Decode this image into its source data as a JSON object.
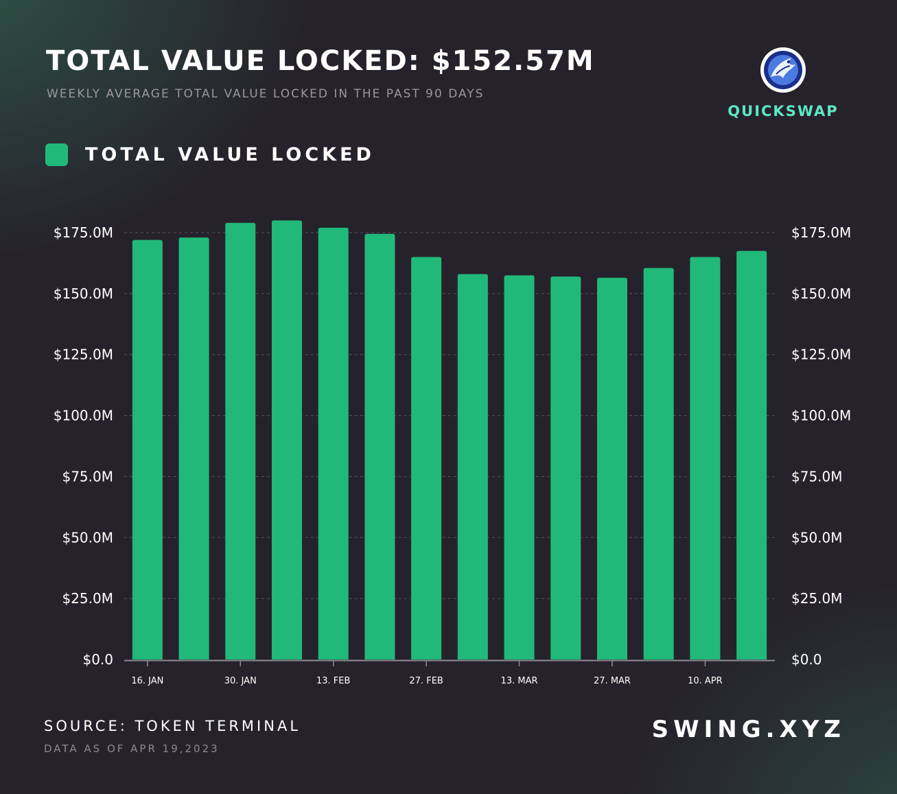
{
  "header": {
    "title": "TOTAL VALUE LOCKED: $152.57M",
    "subtitle": "WEEKLY AVERAGE TOTAL VALUE LOCKED IN THE PAST 90 DAYS"
  },
  "brand": {
    "name": "QUICKSWAP",
    "logo_icon": "quickswap-dragon-logo-icon",
    "name_color": "#5ee6c4"
  },
  "legend": {
    "label": "TOTAL VALUE LOCKED",
    "color": "#21b97a"
  },
  "footer": {
    "source": "SOURCE: TOKEN TERMINAL",
    "as_of": "DATA AS OF APR 19,2023",
    "site": "SWING.XYZ"
  },
  "colors": {
    "background": "#26222b",
    "bar": "#21b97a",
    "grid": "#57535d",
    "axis": "#8f8c95"
  },
  "chart_data": {
    "type": "bar",
    "series": [
      {
        "name": "TOTAL VALUE LOCKED",
        "values": [
          172.0,
          173.0,
          179.0,
          180.0,
          177.0,
          174.5,
          165.0,
          158.0,
          157.5,
          157.0,
          156.5,
          160.5,
          165.0,
          167.5
        ]
      }
    ],
    "x_tick_labels": [
      "16. JAN",
      "30. JAN",
      "13. FEB",
      "27. FEB",
      "13. MAR",
      "27. MAR",
      "10. APR"
    ],
    "x_tick_bar_index": [
      0,
      2,
      4,
      6,
      8,
      10,
      12
    ],
    "y_ticks": [
      0,
      25,
      50,
      75,
      100,
      125,
      150,
      175
    ],
    "y_tick_labels": [
      "$0.0",
      "$25.0M",
      "$50.0M",
      "$75.0M",
      "$100.0M",
      "$125.0M",
      "$150.0M",
      "$175.0M"
    ],
    "ylim": [
      0,
      175
    ],
    "secondary_y_axis": true,
    "grid": "dashed horizontal",
    "legend_position": "top-left",
    "unit": "$M"
  }
}
